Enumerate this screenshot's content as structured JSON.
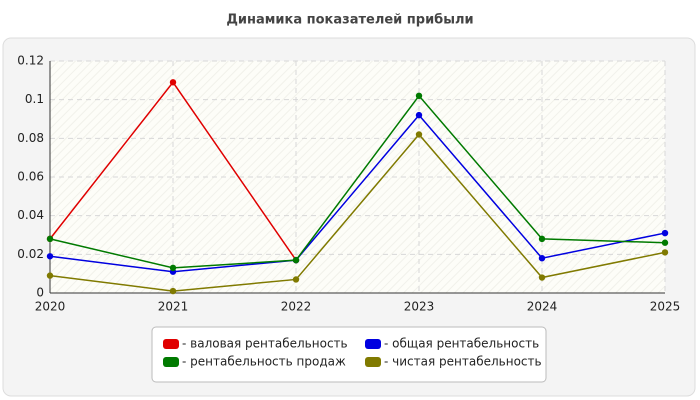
{
  "chart_data": {
    "type": "line",
    "title": "Динамика показателей прибыли",
    "x": [
      2020,
      2021,
      2022,
      2023,
      2024,
      2025
    ],
    "xlim": [
      2020,
      2025
    ],
    "xticks": [
      2020,
      2021,
      2022,
      2023,
      2024,
      2025
    ],
    "ylim": [
      0,
      0.12
    ],
    "yticks": [
      0,
      0.02,
      0.04,
      0.06,
      0.08,
      0.1,
      0.12
    ],
    "grid": true,
    "legend": "bottom",
    "series": [
      {
        "name": "- валовая рентабельность",
        "color": "#e00000",
        "values": [
          0.028,
          0.109,
          0.017,
          null,
          null,
          null
        ]
      },
      {
        "name": "- общая рентабельность",
        "color": "#0000e0",
        "values": [
          0.019,
          0.011,
          0.017,
          0.092,
          0.018,
          0.031
        ]
      },
      {
        "name": "- рентабельность продаж",
        "color": "#007a00",
        "values": [
          0.028,
          0.013,
          0.017,
          0.102,
          0.028,
          0.026
        ]
      },
      {
        "name": "- чистая рентабельность",
        "color": "#807a00",
        "values": [
          0.009,
          0.001,
          0.007,
          0.082,
          0.008,
          0.021
        ]
      }
    ]
  }
}
